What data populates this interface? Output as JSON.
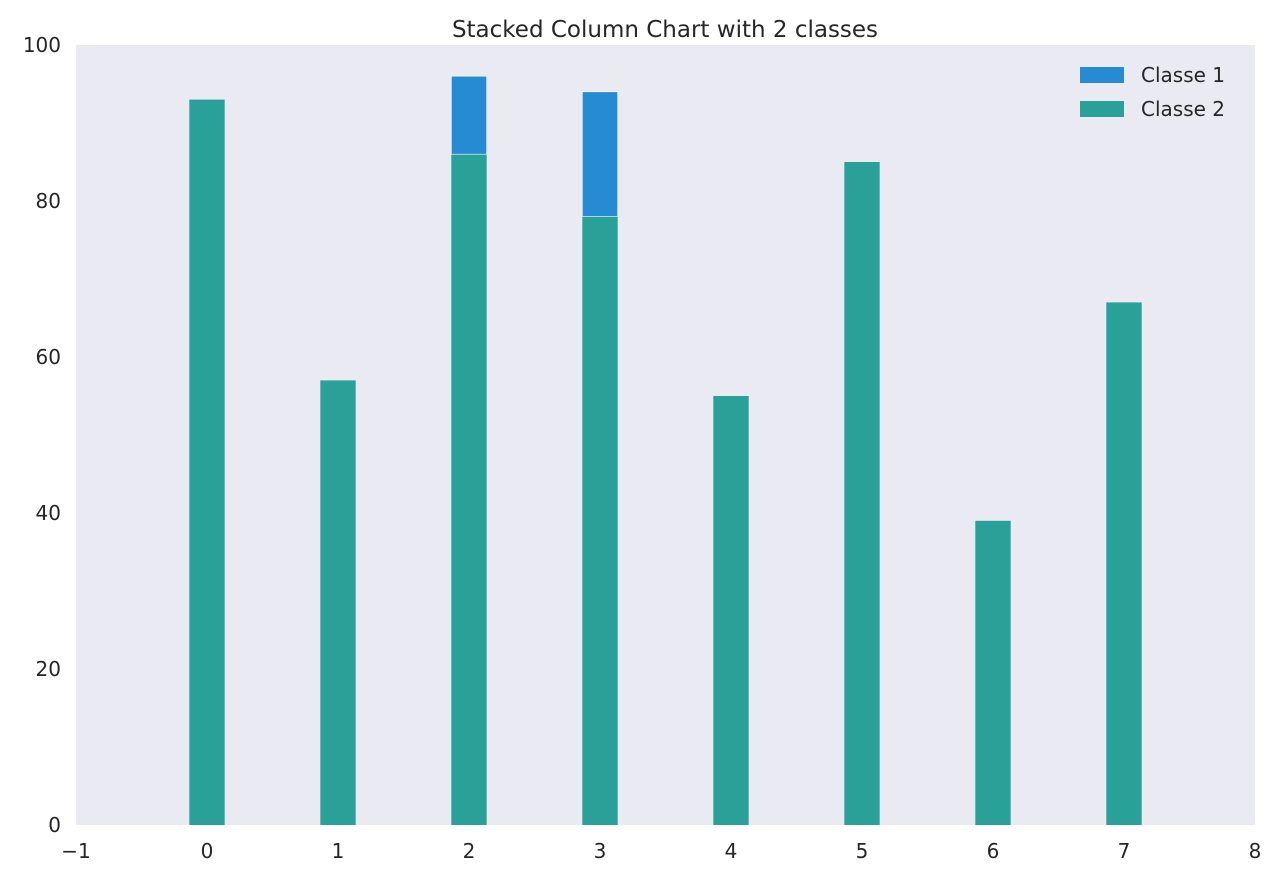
{
  "chart_data": {
    "type": "bar",
    "stacked": true,
    "title": "Stacked Column Chart with 2 classes",
    "xlabel": "",
    "ylabel": "",
    "x": [
      0,
      1,
      2,
      3,
      4,
      5,
      6,
      7
    ],
    "xlim": [
      -1,
      8
    ],
    "ylim": [
      0,
      100
    ],
    "xticks": [
      "−1",
      "0",
      "1",
      "2",
      "3",
      "4",
      "5",
      "6",
      "7",
      "8"
    ],
    "yticks": [
      "0",
      "20",
      "40",
      "60",
      "80",
      "100"
    ],
    "series": [
      {
        "name": "Classe 2",
        "color": "#2aa198",
        "values": [
          93,
          57,
          86,
          78,
          55,
          85,
          39,
          67
        ]
      },
      {
        "name": "Classe 1",
        "color": "#268bd2",
        "values": [
          0,
          0,
          10,
          16,
          0,
          0,
          0,
          0
        ]
      }
    ],
    "legend": {
      "position": "top-right",
      "entries": [
        {
          "label": "Classe 1",
          "color": "#268bd2"
        },
        {
          "label": "Classe 2",
          "color": "#2aa198"
        }
      ]
    },
    "grid": false,
    "background": "#eaeaf2"
  }
}
